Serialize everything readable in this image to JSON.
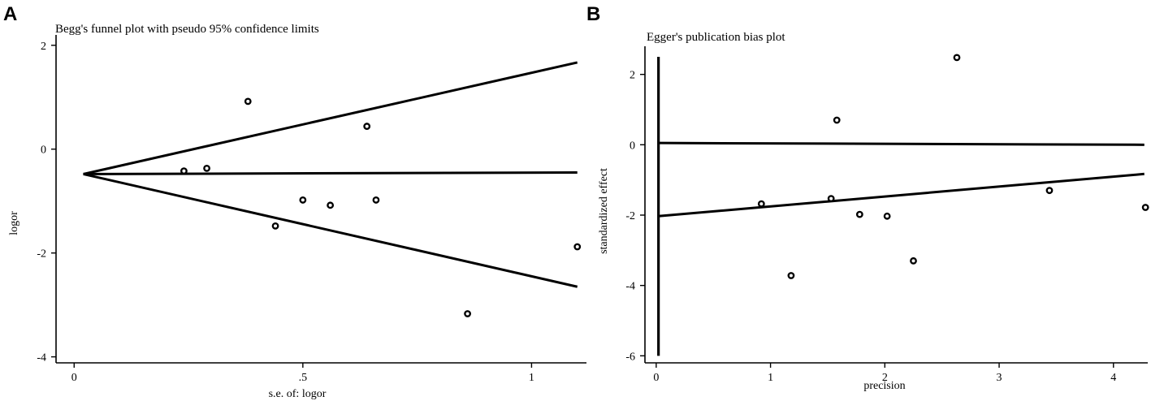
{
  "panels": {
    "a": {
      "letter": "A",
      "chart_data": {
        "type": "scatter",
        "title": "Begg's funnel plot with pseudo 95% confidence limits",
        "xlabel": "s.e. of: logor",
        "ylabel": "logor",
        "xlim": [
          -0.02,
          1.12
        ],
        "ylim": [
          -4.1,
          2.2
        ],
        "x_ticks": [
          0,
          0.5,
          1
        ],
        "x_tick_labels": [
          "0",
          ".5",
          "1"
        ],
        "y_ticks": [
          2,
          0,
          -2,
          -4
        ],
        "y_tick_labels": [
          "2",
          "0",
          "-2",
          "-4"
        ],
        "points": [
          {
            "x": 0.24,
            "y": -0.42
          },
          {
            "x": 0.29,
            "y": -0.37
          },
          {
            "x": 0.38,
            "y": 0.92
          },
          {
            "x": 0.44,
            "y": -1.48
          },
          {
            "x": 0.5,
            "y": -0.98
          },
          {
            "x": 0.56,
            "y": -1.08
          },
          {
            "x": 0.64,
            "y": 0.44
          },
          {
            "x": 0.66,
            "y": -0.98
          },
          {
            "x": 0.86,
            "y": -3.17
          },
          {
            "x": 1.1,
            "y": -1.88
          }
        ],
        "lines": [
          {
            "name": "upper",
            "x": [
              0.02,
              1.1
            ],
            "y": [
              -0.48,
              1.67
            ]
          },
          {
            "name": "center",
            "x": [
              0.02,
              1.1
            ],
            "y": [
              -0.48,
              -0.45
            ]
          },
          {
            "name": "lower",
            "x": [
              0.02,
              1.1
            ],
            "y": [
              -0.48,
              -2.65
            ]
          }
        ],
        "grid": false
      }
    },
    "b": {
      "letter": "B",
      "chart_data": {
        "type": "scatter",
        "title": "Egger's publication bias plot",
        "xlabel": "precision",
        "ylabel": "standardized effect",
        "xlim": [
          -0.07,
          4.3
        ],
        "ylim": [
          -6.2,
          2.8
        ],
        "x_ticks": [
          0,
          1,
          2,
          3,
          4
        ],
        "x_tick_labels": [
          "0",
          "1",
          "2",
          "3",
          "4"
        ],
        "y_ticks": [
          2,
          0,
          -2,
          -4,
          -6
        ],
        "y_tick_labels": [
          "2",
          "0",
          "-2",
          "-4",
          "-6"
        ],
        "points": [
          {
            "x": 0.92,
            "y": -1.68
          },
          {
            "x": 1.18,
            "y": -3.72
          },
          {
            "x": 1.53,
            "y": -1.53
          },
          {
            "x": 1.58,
            "y": 0.7
          },
          {
            "x": 1.78,
            "y": -1.98
          },
          {
            "x": 2.02,
            "y": -2.03
          },
          {
            "x": 2.25,
            "y": -3.3
          },
          {
            "x": 2.63,
            "y": 2.48
          },
          {
            "x": 3.44,
            "y": -1.3
          },
          {
            "x": 4.28,
            "y": -1.78
          }
        ],
        "lines": [
          {
            "name": "horizontal",
            "x": [
              0.02,
              4.27
            ],
            "y": [
              0.05,
              0.0
            ]
          },
          {
            "name": "regression",
            "x": [
              0.02,
              4.27
            ],
            "y": [
              -2.03,
              -0.83
            ]
          }
        ],
        "thick_axis_line": {
          "x": 0.02,
          "y": [
            2.5,
            -6.0
          ]
        },
        "grid": false
      }
    }
  }
}
